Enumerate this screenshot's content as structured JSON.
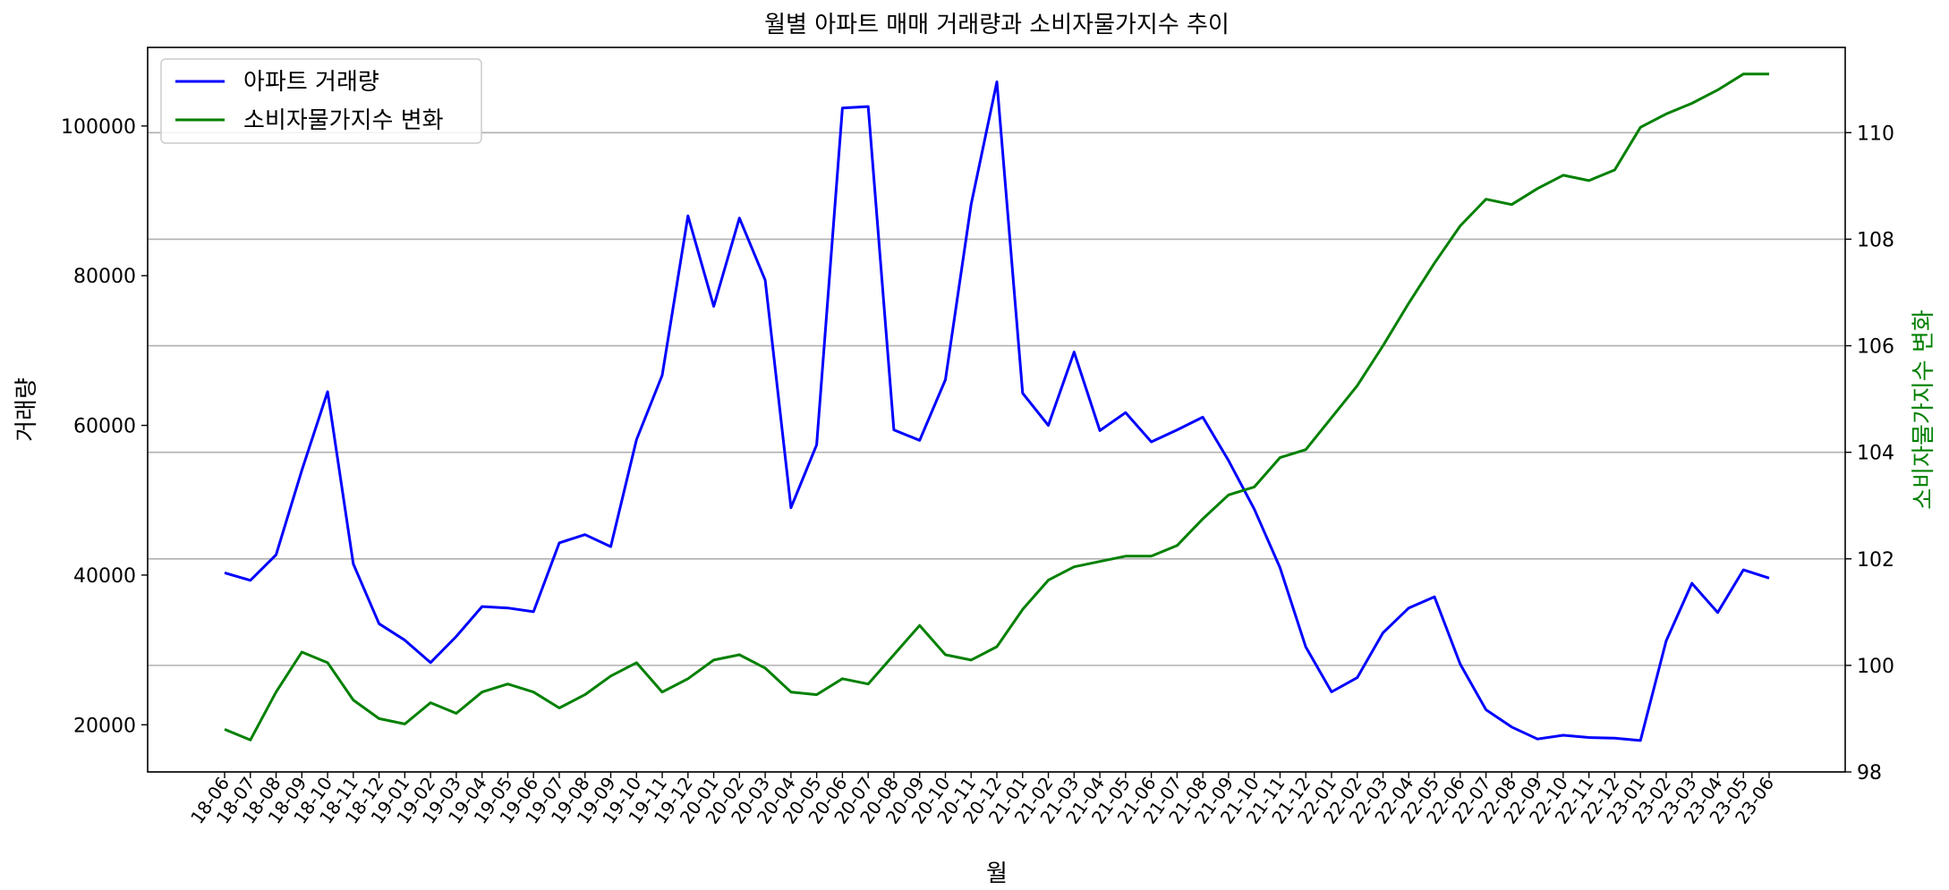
{
  "chart_data": {
    "type": "line",
    "title": "월별 아파트 매매 거래량과 소비자물가지수 추이",
    "xlabel": "월",
    "ylabel": "거래량",
    "y2label": "소비자물가지수 변화",
    "categories": [
      "18-06",
      "18-07",
      "18-08",
      "18-09",
      "18-10",
      "18-11",
      "18-12",
      "19-01",
      "19-02",
      "19-03",
      "19-04",
      "19-05",
      "19-06",
      "19-07",
      "19-08",
      "19-09",
      "19-10",
      "19-11",
      "19-12",
      "20-01",
      "20-02",
      "20-03",
      "20-04",
      "20-05",
      "20-06",
      "20-07",
      "20-08",
      "20-09",
      "20-10",
      "20-11",
      "20-12",
      "21-01",
      "21-02",
      "21-03",
      "21-04",
      "21-05",
      "21-06",
      "21-07",
      "21-08",
      "21-09",
      "21-10",
      "21-11",
      "21-12",
      "22-01",
      "22-02",
      "22-03",
      "22-04",
      "22-05",
      "22-06",
      "22-07",
      "22-08",
      "22-09",
      "22-10",
      "22-11",
      "22-12",
      "23-01",
      "23-02",
      "23-03",
      "23-04",
      "23-05",
      "23-06"
    ],
    "series": [
      {
        "name": "아파트 거래량",
        "color": "#0000ff",
        "axis": "left",
        "values": [
          40300,
          39300,
          42700,
          54000,
          64500,
          41500,
          33500,
          31300,
          28300,
          31800,
          35800,
          35600,
          35100,
          44300,
          45400,
          43800,
          58100,
          66700,
          88000,
          75900,
          87700,
          79400,
          49000,
          57400,
          102400,
          102600,
          59400,
          58000,
          66100,
          89500,
          105900,
          64300,
          60000,
          69800,
          59300,
          61700,
          57800,
          59400,
          61100,
          55300,
          48800,
          41000,
          30400,
          24400,
          26300,
          32300,
          35600,
          37100,
          28100,
          22000,
          19700,
          18100,
          18600,
          18300,
          18200,
          17900,
          31200,
          38900,
          35000,
          40700,
          39600
        ]
      },
      {
        "name": "소비자물가지수 변화",
        "color": "#008000",
        "axis": "right",
        "values": [
          98.8,
          98.6,
          99.5,
          100.25,
          100.05,
          99.35,
          99.0,
          98.9,
          99.3,
          99.1,
          99.5,
          99.65,
          99.5,
          99.2,
          99.45,
          99.8,
          100.05,
          99.5,
          99.75,
          100.1,
          100.2,
          99.95,
          99.5,
          99.45,
          99.75,
          99.65,
          100.2,
          100.75,
          100.2,
          100.1,
          100.35,
          101.05,
          101.6,
          101.85,
          101.95,
          102.05,
          102.05,
          102.25,
          102.75,
          103.2,
          103.35,
          103.9,
          104.05,
          104.65,
          105.25,
          106.0,
          106.8,
          107.55,
          108.25,
          108.75,
          108.65,
          108.95,
          109.2,
          109.1,
          109.3,
          110.1,
          110.35,
          110.55,
          110.8,
          111.1,
          111.1
        ]
      }
    ],
    "ylim": [
      13700,
      110500
    ],
    "y2lim": [
      98,
      111.6
    ],
    "yticks": [
      20000,
      40000,
      60000,
      80000,
      100000
    ],
    "y2ticks": [
      98,
      100,
      102,
      104,
      106,
      108,
      110
    ],
    "grid": "y2-major",
    "legend": "upper-left"
  }
}
